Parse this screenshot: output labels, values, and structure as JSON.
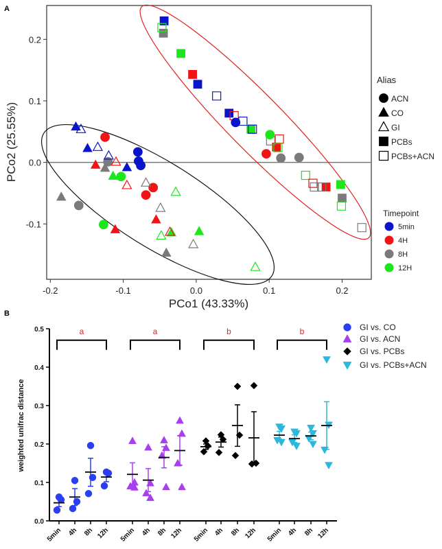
{
  "chart_data": [
    {
      "type": "scatter",
      "panel_label": "A",
      "xlabel": "PCo1 (43.33%)",
      "ylabel": "PCo2 (25.55%)",
      "xlim": [
        -0.205,
        0.24
      ],
      "ylim": [
        -0.19,
        0.255
      ],
      "xticks": [
        "-0.2",
        "-0.1",
        "0.0",
        "0.1",
        "0.2"
      ],
      "xtick_values": [
        -0.2,
        -0.1,
        0.0,
        0.1,
        0.2
      ],
      "yticks": [
        "-0.1",
        "0.0",
        "0.1",
        "0.2"
      ],
      "ytick_values": [
        -0.1,
        0.0,
        0.1,
        0.2
      ],
      "zero_line": true,
      "legend_alias_title": "Alias",
      "legend_alias": [
        {
          "label": "ACN",
          "shape": "circle",
          "filled": true
        },
        {
          "label": "CO",
          "shape": "triangle",
          "filled": true
        },
        {
          "label": "GI",
          "shape": "triangle",
          "filled": false
        },
        {
          "label": "PCBs",
          "shape": "square",
          "filled": true
        },
        {
          "label": "PCBs+ACN",
          "shape": "square",
          "filled": false
        }
      ],
      "legend_time_title": "Timepoint",
      "legend_time": [
        {
          "label": "5min",
          "color": "#0a14c8"
        },
        {
          "label": "4H",
          "color": "#f01414"
        },
        {
          "label": "8H",
          "color": "#7a7a7a"
        },
        {
          "label": "12H",
          "color": "#1ee61e"
        }
      ],
      "ellipse_colors": {
        "pcb_group": "#e02020",
        "other_group": "#111111"
      },
      "points": [
        {
          "alias": "PCBs",
          "time": "5min",
          "x": -0.044,
          "y": 0.23
        },
        {
          "alias": "PCBs",
          "time": "8H",
          "x": -0.045,
          "y": 0.21
        },
        {
          "alias": "PCBs",
          "time": "12H",
          "x": -0.021,
          "y": 0.177
        },
        {
          "alias": "PCBs",
          "time": "4H",
          "x": -0.005,
          "y": 0.143
        },
        {
          "alias": "PCBs",
          "time": "5min",
          "x": 0.002,
          "y": 0.127
        },
        {
          "alias": "PCBs",
          "time": "5min",
          "x": 0.045,
          "y": 0.08
        },
        {
          "alias": "PCBs",
          "time": "12H",
          "x": 0.075,
          "y": 0.054
        },
        {
          "alias": "PCBs",
          "time": "4H",
          "x": 0.11,
          "y": 0.025
        },
        {
          "alias": "PCBs",
          "time": "4H",
          "x": 0.178,
          "y": -0.04
        },
        {
          "alias": "PCBs",
          "time": "12H",
          "x": 0.198,
          "y": -0.036
        },
        {
          "alias": "PCBs",
          "time": "8H",
          "x": 0.2,
          "y": -0.058
        },
        {
          "alias": "PCBs+ACN",
          "time": "12H",
          "x": -0.047,
          "y": 0.219
        },
        {
          "alias": "PCBs+ACN",
          "time": "5min",
          "x": 0.028,
          "y": 0.108
        },
        {
          "alias": "PCBs+ACN",
          "time": "4H",
          "x": 0.052,
          "y": 0.076
        },
        {
          "alias": "PCBs+ACN",
          "time": "5min",
          "x": 0.064,
          "y": 0.067
        },
        {
          "alias": "PCBs+ACN",
          "time": "5min",
          "x": 0.077,
          "y": 0.054
        },
        {
          "alias": "PCBs+ACN",
          "time": "8H",
          "x": 0.102,
          "y": 0.035
        },
        {
          "alias": "PCBs+ACN",
          "time": "4H",
          "x": 0.114,
          "y": 0.038
        },
        {
          "alias": "PCBs+ACN",
          "time": "12H",
          "x": 0.112,
          "y": 0.024
        },
        {
          "alias": "PCBs+ACN",
          "time": "12H",
          "x": 0.15,
          "y": -0.021
        },
        {
          "alias": "PCBs+ACN",
          "time": "8H",
          "x": 0.162,
          "y": -0.04
        },
        {
          "alias": "PCBs+ACN",
          "time": "4H",
          "x": 0.16,
          "y": -0.034
        },
        {
          "alias": "PCBs+ACN",
          "time": "8H",
          "x": 0.172,
          "y": -0.04
        },
        {
          "alias": "PCBs+ACN",
          "time": "12H",
          "x": 0.199,
          "y": -0.071
        },
        {
          "alias": "PCBs+ACN",
          "time": "8H",
          "x": 0.227,
          "y": -0.106
        },
        {
          "alias": "ACN",
          "time": "5min",
          "x": 0.054,
          "y": 0.065
        },
        {
          "alias": "ACN",
          "time": "12H",
          "x": 0.101,
          "y": 0.045
        },
        {
          "alias": "ACN",
          "time": "4H",
          "x": 0.096,
          "y": 0.014
        },
        {
          "alias": "ACN",
          "time": "8H",
          "x": 0.116,
          "y": 0.007
        },
        {
          "alias": "ACN",
          "time": "8H",
          "x": 0.141,
          "y": 0.008
        },
        {
          "alias": "ACN",
          "time": "4H",
          "x": -0.125,
          "y": 0.041
        },
        {
          "alias": "ACN",
          "time": "5min",
          "x": -0.08,
          "y": 0.017
        },
        {
          "alias": "ACN",
          "time": "5min",
          "x": -0.079,
          "y": 0.002
        },
        {
          "alias": "ACN",
          "time": "5min",
          "x": -0.076,
          "y": -0.005
        },
        {
          "alias": "ACN",
          "time": "8H",
          "x": -0.121,
          "y": 0.001
        },
        {
          "alias": "ACN",
          "time": "12H",
          "x": -0.103,
          "y": -0.023
        },
        {
          "alias": "ACN",
          "time": "4H",
          "x": -0.059,
          "y": -0.041
        },
        {
          "alias": "ACN",
          "time": "4H",
          "x": -0.069,
          "y": -0.053
        },
        {
          "alias": "ACN",
          "time": "8H",
          "x": -0.161,
          "y": -0.07
        },
        {
          "alias": "ACN",
          "time": "12H",
          "x": -0.127,
          "y": -0.101
        },
        {
          "alias": "CO",
          "time": "5min",
          "x": -0.165,
          "y": 0.058
        },
        {
          "alias": "CO",
          "time": "5min",
          "x": -0.149,
          "y": 0.023
        },
        {
          "alias": "CO",
          "time": "4H",
          "x": -0.138,
          "y": -0.004
        },
        {
          "alias": "CO",
          "time": "8H",
          "x": -0.125,
          "y": -0.009
        },
        {
          "alias": "CO",
          "time": "12H",
          "x": -0.114,
          "y": -0.022
        },
        {
          "alias": "CO",
          "time": "5min",
          "x": -0.095,
          "y": -0.008
        },
        {
          "alias": "CO",
          "time": "8H",
          "x": -0.185,
          "y": -0.056
        },
        {
          "alias": "CO",
          "time": "4H",
          "x": -0.111,
          "y": -0.109
        },
        {
          "alias": "CO",
          "time": "4H",
          "x": -0.055,
          "y": -0.093
        },
        {
          "alias": "CO",
          "time": "12H",
          "x": -0.034,
          "y": -0.114
        },
        {
          "alias": "CO",
          "time": "12H",
          "x": 0.004,
          "y": -0.112
        },
        {
          "alias": "CO",
          "time": "8H",
          "x": -0.041,
          "y": -0.147
        },
        {
          "alias": "GI",
          "time": "5min",
          "x": -0.158,
          "y": 0.054
        },
        {
          "alias": "GI",
          "time": "5min",
          "x": -0.135,
          "y": 0.025
        },
        {
          "alias": "GI",
          "time": "5min",
          "x": -0.12,
          "y": 0.011
        },
        {
          "alias": "GI",
          "time": "4H",
          "x": -0.11,
          "y": 0.001
        },
        {
          "alias": "GI",
          "time": "4H",
          "x": -0.095,
          "y": -0.037
        },
        {
          "alias": "GI",
          "time": "8H",
          "x": -0.069,
          "y": -0.033
        },
        {
          "alias": "GI",
          "time": "12H",
          "x": -0.028,
          "y": -0.048
        },
        {
          "alias": "GI",
          "time": "8H",
          "x": -0.049,
          "y": -0.074
        },
        {
          "alias": "GI",
          "time": "4H",
          "x": -0.036,
          "y": -0.113
        },
        {
          "alias": "GI",
          "time": "12H",
          "x": -0.048,
          "y": -0.119
        },
        {
          "alias": "GI",
          "time": "8H",
          "x": -0.004,
          "y": -0.133
        },
        {
          "alias": "GI",
          "time": "12H",
          "x": 0.081,
          "y": -0.17
        }
      ]
    },
    {
      "type": "scatter",
      "panel_label": "B",
      "ylabel": "weighted unifrac distance",
      "ylim": [
        0,
        0.5
      ],
      "yticks": [
        "0.0",
        "0.1",
        "0.2",
        "0.3",
        "0.4",
        "0.5"
      ],
      "ytick_values": [
        0,
        0.1,
        0.2,
        0.3,
        0.4,
        0.5
      ],
      "categories": [
        "5min",
        "4h",
        "8h",
        "12h"
      ],
      "group_letters": [
        "a",
        "a",
        "b",
        "b"
      ],
      "letter_color": "#e8202a",
      "series": [
        {
          "name": "GI vs. CO",
          "marker": "circle",
          "color": "#2b3ff0",
          "values": [
            [
              0.062,
              0.055,
              0.028
            ],
            [
              0.105,
              0.05,
              0.032
            ],
            [
              0.196,
              0.113,
              0.071
            ],
            [
              0.127,
              0.124,
              0.091
            ]
          ],
          "mean": [
            0.047,
            0.062,
            0.127,
            0.114
          ],
          "err_low": [
            0.037,
            0.04,
            0.09,
            0.102
          ],
          "err_high": [
            0.057,
            0.084,
            0.163,
            0.125
          ]
        },
        {
          "name": "GI vs. ACN",
          "marker": "triangle-up",
          "color": "#a63ff0",
          "values": [
            [
              0.208,
              0.1,
              0.09,
              0.087
            ],
            [
              0.191,
              0.098,
              0.072,
              0.06
            ],
            [
              0.21,
              0.19,
              0.17,
              0.088
            ],
            [
              0.261,
              0.227,
              0.15,
              0.088
            ]
          ],
          "mean": [
            0.121,
            0.106,
            0.165,
            0.183
          ],
          "err_low": [
            0.09,
            0.076,
            0.138,
            0.145
          ],
          "err_high": [
            0.151,
            0.136,
            0.193,
            0.222
          ]
        },
        {
          "name": "GI vs. PCBs",
          "marker": "diamond",
          "color": "#000000",
          "values": [
            [
              0.208,
              0.195,
              0.18
            ],
            [
              0.224,
              0.212,
              0.178
            ],
            [
              0.35,
              0.223,
              0.17
            ],
            [
              0.352,
              0.15,
              0.148
            ]
          ],
          "mean": [
            0.193,
            0.205,
            0.248,
            0.216
          ],
          "err_low": [
            0.186,
            0.192,
            0.194,
            0.148
          ],
          "err_high": [
            0.2,
            0.218,
            0.302,
            0.284
          ]
        },
        {
          "name": "GI vs. PCBs+ACN",
          "marker": "triangle-down",
          "color": "#2ab8dc",
          "values": [
            [
              0.245,
              0.24,
              0.21,
              0.205
            ],
            [
              0.232,
              0.228,
              0.205,
              0.195
            ],
            [
              0.242,
              0.228,
              0.215,
              0.2
            ],
            [
              0.42,
              0.25,
              0.185,
              0.145
            ]
          ],
          "mean": [
            0.223,
            0.214,
            0.221,
            0.248
          ],
          "err_low": [
            0.213,
            0.204,
            0.211,
            0.186
          ],
          "err_high": [
            0.233,
            0.224,
            0.231,
            0.31
          ]
        }
      ]
    }
  ]
}
